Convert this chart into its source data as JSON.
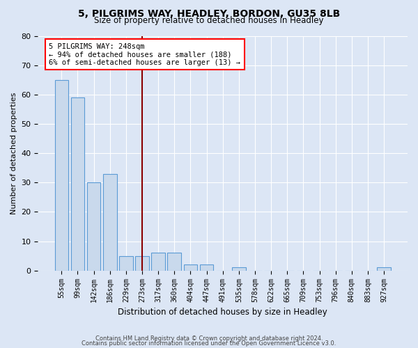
{
  "title1": "5, PILGRIMS WAY, HEADLEY, BORDON, GU35 8LB",
  "title2": "Size of property relative to detached houses in Headley",
  "xlabel": "Distribution of detached houses by size in Headley",
  "ylabel": "Number of detached properties",
  "categories": [
    "55sqm",
    "99sqm",
    "142sqm",
    "186sqm",
    "229sqm",
    "273sqm",
    "317sqm",
    "360sqm",
    "404sqm",
    "447sqm",
    "491sqm",
    "535sqm",
    "578sqm",
    "622sqm",
    "665sqm",
    "709sqm",
    "753sqm",
    "796sqm",
    "840sqm",
    "883sqm",
    "927sqm"
  ],
  "values": [
    65,
    59,
    30,
    33,
    5,
    5,
    6,
    6,
    2,
    2,
    0,
    1,
    0,
    0,
    0,
    0,
    0,
    0,
    0,
    0,
    1
  ],
  "bar_color": "#c9d9ec",
  "bar_edge_color": "#5b9bd5",
  "annotation_text": "5 PILGRIMS WAY: 248sqm\n← 94% of detached houses are smaller (188)\n6% of semi-detached houses are larger (13) →",
  "annotation_box_color": "white",
  "annotation_box_edge": "red",
  "vline_color": "#8b0000",
  "vline_index": 5,
  "ylim": [
    0,
    80
  ],
  "yticks": [
    0,
    10,
    20,
    30,
    40,
    50,
    60,
    70,
    80
  ],
  "footer1": "Contains HM Land Registry data © Crown copyright and database right 2024.",
  "footer2": "Contains public sector information licensed under the Open Government Licence v3.0.",
  "background_color": "#dce6f5",
  "plot_bg_color": "#dce6f5"
}
